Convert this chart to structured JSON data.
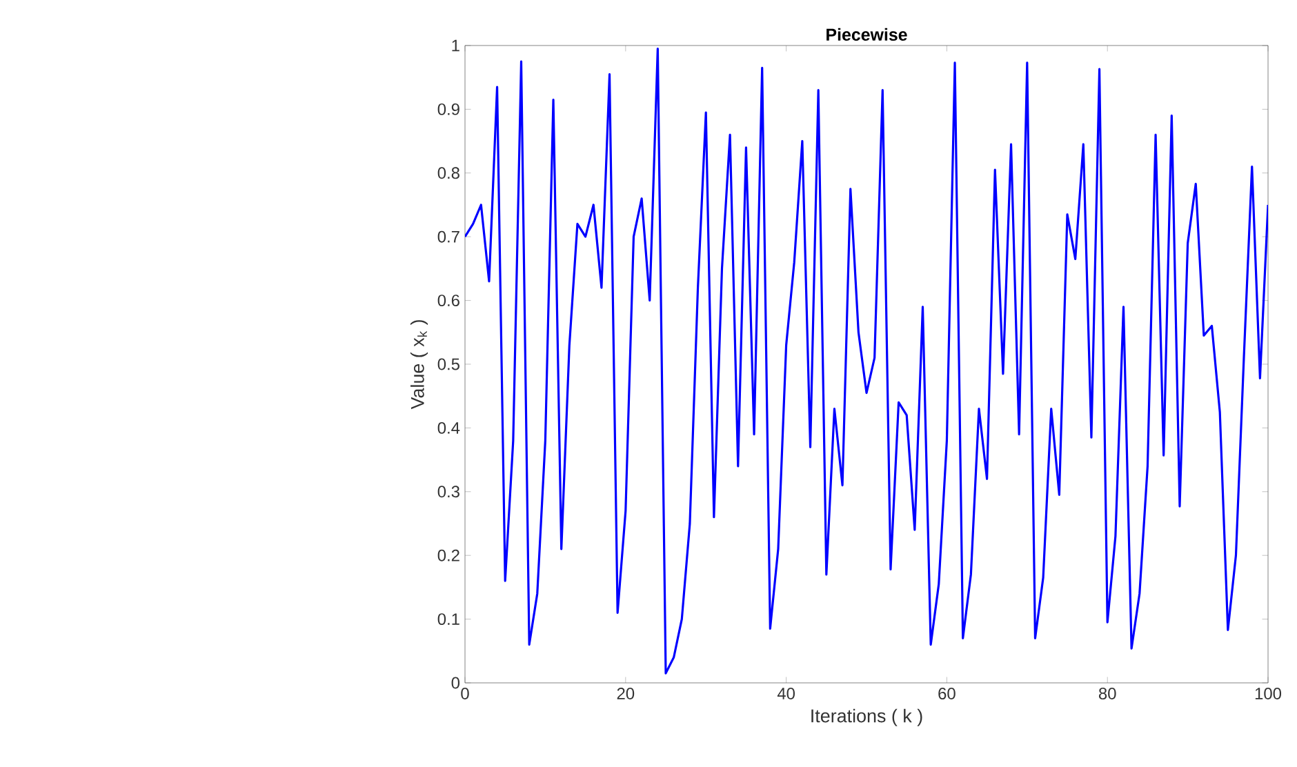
{
  "chart_data": {
    "type": "line",
    "title": "Piecewise",
    "xlabel": "Iterations ( k )",
    "ylabel": "Value ( x$_{k}$ )",
    "x": [
      0,
      1,
      2,
      3,
      4,
      5,
      6,
      7,
      8,
      9,
      10,
      11,
      12,
      13,
      14,
      15,
      16,
      17,
      18,
      19,
      20,
      21,
      22,
      23,
      24,
      25,
      26,
      27,
      28,
      29,
      30,
      31,
      32,
      33,
      34,
      35,
      36,
      37,
      38,
      39,
      40,
      41,
      42,
      43,
      44,
      45,
      46,
      47,
      48,
      49,
      50,
      51,
      52,
      53,
      54,
      55,
      56,
      57,
      58,
      59,
      60,
      61,
      62,
      63,
      64,
      65,
      66,
      67,
      68,
      69,
      70,
      71,
      72,
      73,
      74,
      75,
      76,
      77,
      78,
      79,
      80,
      81,
      82,
      83,
      84,
      85,
      86,
      87,
      88,
      89,
      90,
      91,
      92,
      93,
      94,
      95,
      96,
      97,
      98,
      99,
      100
    ],
    "series": [
      {
        "color": "#0000ff",
        "values": [
          0.7,
          0.72,
          0.75,
          0.63,
          0.935,
          0.16,
          0.38,
          0.975,
          0.06,
          0.14,
          0.38,
          0.915,
          0.21,
          0.53,
          0.72,
          0.7,
          0.75,
          0.62,
          0.955,
          0.11,
          0.27,
          0.7,
          0.76,
          0.6,
          0.995,
          0.015,
          0.04,
          0.1,
          0.25,
          0.62,
          0.895,
          0.26,
          0.65,
          0.86,
          0.34,
          0.84,
          0.39,
          0.965,
          0.085,
          0.21,
          0.53,
          0.66,
          0.85,
          0.37,
          0.93,
          0.17,
          0.43,
          0.31,
          0.775,
          0.55,
          0.455,
          0.51,
          0.93,
          0.178,
          0.44,
          0.42,
          0.24,
          0.59,
          0.06,
          0.155,
          0.38,
          0.973,
          0.07,
          0.17,
          0.43,
          0.32,
          0.805,
          0.485,
          0.845,
          0.39,
          0.973,
          0.07,
          0.165,
          0.43,
          0.295,
          0.735,
          0.665,
          0.845,
          0.385,
          0.963,
          0.095,
          0.23,
          0.59,
          0.054,
          0.14,
          0.34,
          0.86,
          0.357,
          0.89,
          0.277,
          0.69,
          0.783,
          0.545,
          0.56,
          0.425,
          0.083,
          0.2,
          0.513,
          0.81,
          0.478,
          0.75
        ]
      }
    ],
    "xlim": [
      0,
      100
    ],
    "xticks": [
      0,
      20,
      40,
      60,
      80,
      100
    ],
    "ylim": [
      0,
      1
    ],
    "yticks": [
      0,
      0.1,
      0.2,
      0.3,
      0.4,
      0.5,
      0.6,
      0.7,
      0.8,
      0.9,
      1
    ],
    "grid": false,
    "line_style": "solid",
    "marker": "none"
  }
}
